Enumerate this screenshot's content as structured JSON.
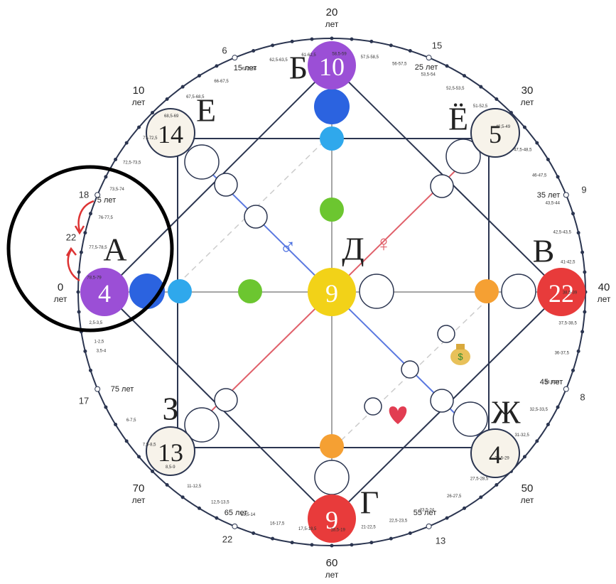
{
  "points": [
    {
      "letter": "А",
      "number": 4
    },
    {
      "letter": "Б",
      "number": 10
    },
    {
      "letter": "В",
      "number": 22
    },
    {
      "letter": "Г",
      "number": 9
    },
    {
      "letter": "Д",
      "number": 9
    },
    {
      "letter": "Е",
      "number": 14
    },
    {
      "letter": "Ё",
      "number": 5
    },
    {
      "letter": "Ж",
      "number": 4
    },
    {
      "letter": "З",
      "number": 13
    }
  ],
  "age_markers": [
    {
      "age": "0",
      "unit": "лет"
    },
    {
      "age": "10",
      "unit": "лет"
    },
    {
      "age": "20",
      "unit": "лет"
    },
    {
      "age": "30",
      "unit": "лет"
    },
    {
      "age": "40",
      "unit": "лет"
    },
    {
      "age": "50",
      "unit": "лет"
    },
    {
      "age": "60",
      "unit": "лет"
    },
    {
      "age": "70",
      "unit": "лет"
    }
  ],
  "side_numbers": [
    "6",
    "15",
    "9",
    "8",
    "13",
    "22",
    "17",
    "18",
    "22"
  ],
  "year_labels": [
    "5 лет",
    "15 лет",
    "25 лет",
    "35 лет",
    "45 лет",
    "55 лет",
    "65 лет",
    "75 лет"
  ],
  "small_labels": [
    "2,5-3,5",
    "1-2,5",
    "3,5-4",
    "78,5-79",
    "77,5-78,5",
    "76-77,5",
    "73,5-74",
    "72,5-73,5",
    "71-72,5",
    "68,5-69",
    "67,5-68,5",
    "66-67,5",
    "63,5-64",
    "62,5-63,5",
    "61-62,5",
    "58,5-59",
    "57,5-58,5",
    "56-57,5",
    "53,5-54",
    "52,5-53,5",
    "51-52,5",
    "48,5-49",
    "47,5-48,5",
    "46-47,5",
    "43,5-44",
    "42,5-43,5",
    "41-42,5",
    "38,5-39",
    "37,5-38,5",
    "36-37,5",
    "33,5-34",
    "32,5-33,5",
    "31-32,5",
    "28,5-29",
    "27,5-28,5",
    "26-27,5",
    "23,5-24",
    "22,5-23,5",
    "21-22,5",
    "18,5-19",
    "17,5-18,5",
    "16-17,5",
    "13,5-14",
    "12,5-13,5",
    "11-12,5",
    "8,5-9",
    "7,5-8,5",
    "6-7,5"
  ],
  "symbols": {
    "male": "♂",
    "female": "♀"
  }
}
